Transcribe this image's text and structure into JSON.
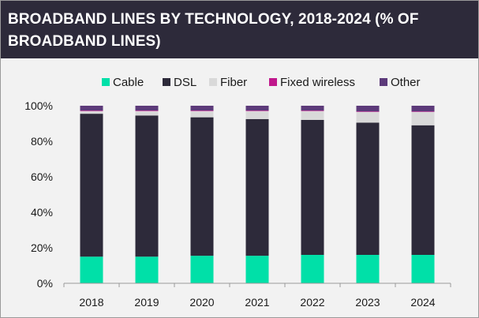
{
  "title": "BROADBAND LINES BY TECHNOLOGY, 2018-2024 (% OF BROADBAND LINES)",
  "chart_data": {
    "type": "bar",
    "stacked": true,
    "categories": [
      "2018",
      "2019",
      "2020",
      "2021",
      "2022",
      "2023",
      "2024"
    ],
    "series": [
      {
        "name": "Cable",
        "color": "#00e0a8",
        "values": [
          15,
          15,
          15.5,
          15.5,
          16,
          16,
          16
        ]
      },
      {
        "name": "DSL",
        "color": "#2d2a3a",
        "values": [
          80.5,
          79.5,
          78,
          77,
          76,
          74.5,
          73
        ]
      },
      {
        "name": "Fiber",
        "color": "#d9d9d9",
        "values": [
          1.5,
          2.5,
          3.5,
          4.5,
          5,
          6,
          7.5
        ]
      },
      {
        "name": "Fixed wireless",
        "color": "#c0188c",
        "values": [
          0.3,
          0.3,
          0.3,
          0.3,
          0.3,
          0.3,
          0.3
        ]
      },
      {
        "name": "Other",
        "color": "#5c3a7a",
        "values": [
          2.7,
          2.7,
          2.7,
          2.7,
          2.7,
          3.2,
          3.2
        ]
      }
    ],
    "y_ticks": [
      "0%",
      "20%",
      "40%",
      "60%",
      "80%",
      "100%"
    ],
    "ylim": [
      0,
      100
    ],
    "legend_position": "top",
    "grid": false
  }
}
